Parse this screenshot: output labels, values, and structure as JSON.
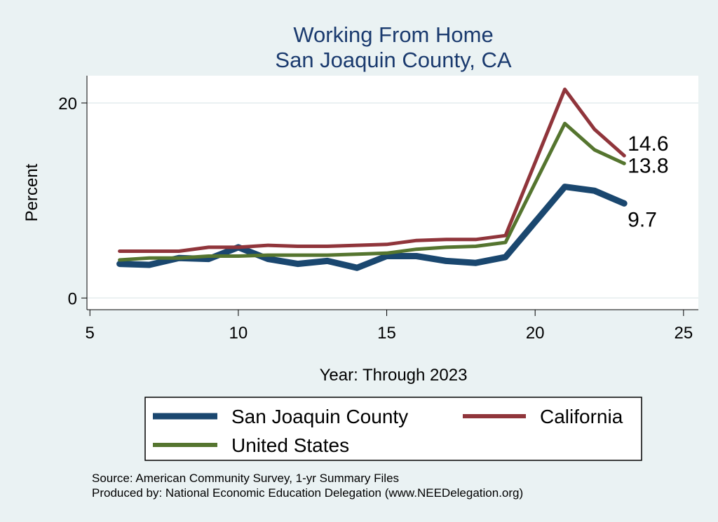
{
  "chart_data": {
    "type": "line",
    "title": [
      "Working From Home",
      "San Joaquin County, CA"
    ],
    "xlabel": "Year: Through 2023",
    "ylabel": "Percent",
    "xlim": [
      4.9,
      25.5
    ],
    "ylim": [
      -1.2,
      22.8
    ],
    "xticks": [
      5,
      10,
      15,
      20,
      25
    ],
    "yticks": [
      0,
      20
    ],
    "grid": true,
    "legend_position": "bottom",
    "x": [
      6,
      7,
      8,
      9,
      10,
      11,
      12,
      13,
      14,
      15,
      16,
      17,
      18,
      19,
      21,
      22,
      23
    ],
    "series": [
      {
        "name": "San Joaquin County",
        "color": "#1a476f",
        "width": 9,
        "values": [
          3.5,
          3.4,
          4.1,
          4.0,
          5.2,
          4.0,
          3.5,
          3.8,
          3.1,
          4.3,
          4.3,
          3.8,
          3.6,
          4.2,
          11.4,
          11.0,
          9.7
        ],
        "end_label": "9.7"
      },
      {
        "name": "United States",
        "color": "#55752f",
        "width": 5,
        "values": [
          3.9,
          4.1,
          4.1,
          4.3,
          4.3,
          4.4,
          4.4,
          4.4,
          4.5,
          4.6,
          5.0,
          5.2,
          5.3,
          5.7,
          17.9,
          15.2,
          13.8
        ],
        "end_label": "13.8"
      },
      {
        "name": "California",
        "color": "#90353b",
        "width": 5,
        "values": [
          4.8,
          4.8,
          4.8,
          5.2,
          5.2,
          5.4,
          5.3,
          5.3,
          5.4,
          5.5,
          5.9,
          6.0,
          6.0,
          6.4,
          21.4,
          17.3,
          14.6
        ],
        "end_label": "14.6"
      }
    ]
  },
  "legend": {
    "items": [
      {
        "label": "San Joaquin County",
        "series": 0
      },
      {
        "label": "California",
        "series": 2
      },
      {
        "label": "United States",
        "series": 1
      }
    ]
  },
  "notes": {
    "source": "Source: American Community Survey, 1-yr Summary Files",
    "produced_by": "Produced by: National Economic Education Delegation (www.NEEDelegation.org)"
  }
}
